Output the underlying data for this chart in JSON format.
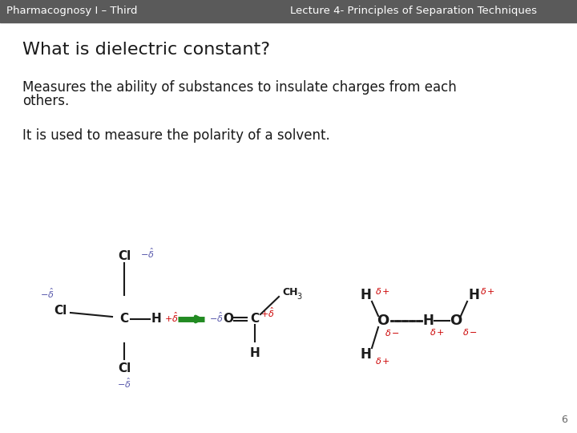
{
  "header_bg": "#5a5a5a",
  "header_text_left": "Pharmacognosy I – Third",
  "header_text_right": "Lecture 4- Principles of Separation Techniques",
  "header_text_color": "#ffffff",
  "header_fontsize": 9.5,
  "bg_color": "#ffffff",
  "title": "What is dielectric constant?",
  "title_fontsize": 16,
  "title_color": "#1a1a1a",
  "body1_line1": "Measures the ability of substances to insulate charges from each",
  "body1_line2": "others.",
  "body2": "It is used to measure the polarity of a solvent.",
  "body_fontsize": 12,
  "body_color": "#1a1a1a",
  "page_number": "6",
  "blue_color": "#5555aa",
  "red_color": "#cc0000",
  "green_color": "#228B22",
  "black_color": "#1a1a1a"
}
